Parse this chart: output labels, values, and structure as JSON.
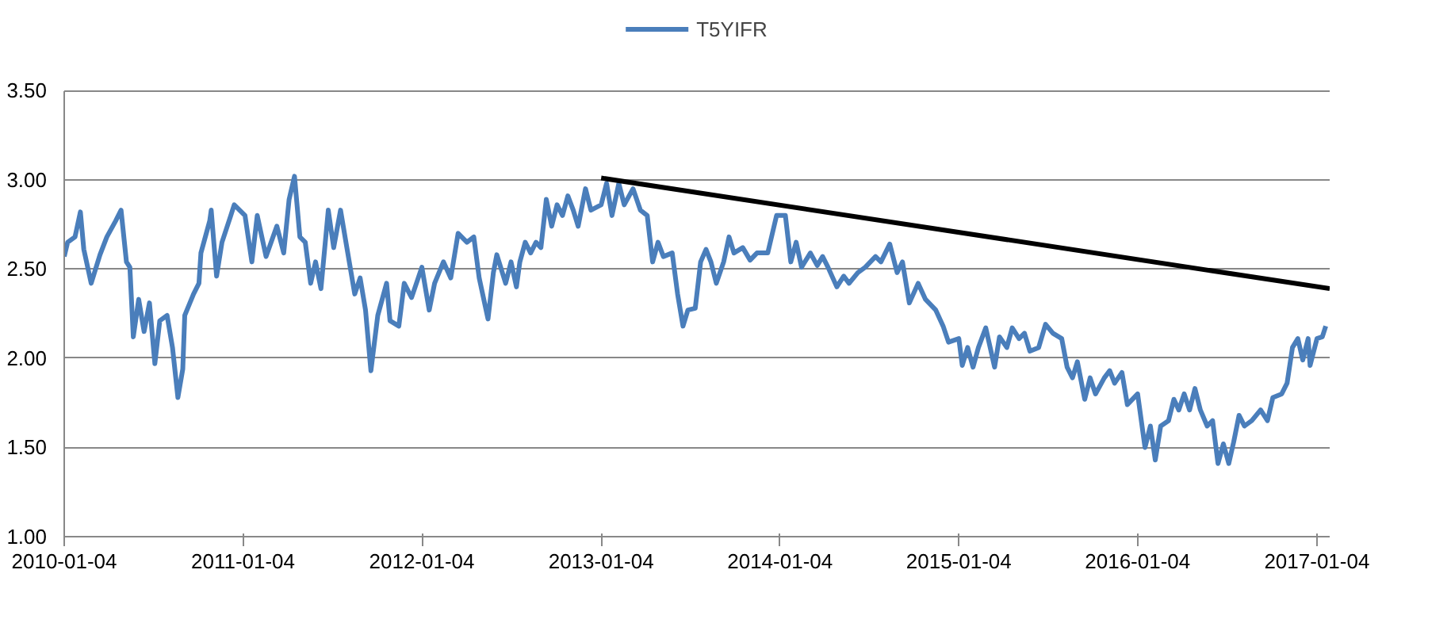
{
  "chart_data": {
    "type": "line",
    "legend": "top",
    "grid": "y",
    "line_style": "solid",
    "marker": "none",
    "xlim": [
      "2010-01-04",
      "2017-01-30"
    ],
    "xticks": [
      "2010-01-04",
      "2011-01-04",
      "2012-01-04",
      "2013-01-04",
      "2014-01-04",
      "2015-01-04",
      "2016-01-04",
      "2017-01-04"
    ],
    "ylim": [
      1.0,
      3.5
    ],
    "yticks": [
      {
        "value": 1.0,
        "label": "1.00"
      },
      {
        "value": 1.5,
        "label": "1.50"
      },
      {
        "value": 2.0,
        "label": "2.00"
      },
      {
        "value": 2.5,
        "label": "2.50"
      },
      {
        "value": 3.0,
        "label": "3.00"
      },
      {
        "value": 3.5,
        "label": "3.50"
      }
    ],
    "series": [
      {
        "name": "T5YIFR",
        "color": "#4a7ebb",
        "x": [
          "2010-01-04",
          "2010-01-11",
          "2010-01-26",
          "2010-02-06",
          "2010-02-13",
          "2010-02-28",
          "2010-03-18",
          "2010-04-01",
          "2010-04-19",
          "2010-04-30",
          "2010-05-11",
          "2010-05-18",
          "2010-05-25",
          "2010-06-05",
          "2010-06-16",
          "2010-06-27",
          "2010-07-08",
          "2010-07-18",
          "2010-08-02",
          "2010-08-13",
          "2010-08-24",
          "2010-09-03",
          "2010-09-07",
          "2010-09-25",
          "2010-10-06",
          "2010-10-10",
          "2010-10-28",
          "2010-10-31",
          "2010-11-11",
          "2010-11-22",
          "2010-12-10",
          "2010-12-17",
          "2011-01-08",
          "2011-01-22",
          "2011-02-02",
          "2011-02-20",
          "2011-03-14",
          "2011-03-28",
          "2011-04-08",
          "2011-04-19",
          "2011-04-30",
          "2011-05-11",
          "2011-05-22",
          "2011-06-01",
          "2011-06-12",
          "2011-06-27",
          "2011-07-08",
          "2011-07-22",
          "2011-08-02",
          "2011-08-20",
          "2011-08-31",
          "2011-09-11",
          "2011-09-22",
          "2011-10-06",
          "2011-10-24",
          "2011-10-31",
          "2011-11-18",
          "2011-11-29",
          "2011-12-14",
          "2012-01-04",
          "2012-01-19",
          "2012-01-30",
          "2012-02-17",
          "2012-03-03",
          "2012-03-18",
          "2012-04-05",
          "2012-04-19",
          "2012-04-30",
          "2012-05-18",
          "2012-05-29",
          "2012-06-05",
          "2012-06-23",
          "2012-07-04",
          "2012-07-15",
          "2012-07-22",
          "2012-08-02",
          "2012-08-13",
          "2012-08-24",
          "2012-09-03",
          "2012-09-14",
          "2012-09-25",
          "2012-10-06",
          "2012-10-17",
          "2012-10-28",
          "2012-11-08",
          "2012-11-18",
          "2012-12-03",
          "2012-12-14",
          "2013-01-04",
          "2013-01-15",
          "2013-01-26",
          "2013-02-09",
          "2013-02-20",
          "2013-03-10",
          "2013-03-25",
          "2013-04-08",
          "2013-04-19",
          "2013-04-30",
          "2013-05-11",
          "2013-05-29",
          "2013-06-09",
          "2013-06-20",
          "2013-06-30",
          "2013-07-15",
          "2013-07-26",
          "2013-08-06",
          "2013-08-16",
          "2013-08-27",
          "2013-09-11",
          "2013-09-22",
          "2013-10-02",
          "2013-10-20",
          "2013-11-04",
          "2013-11-18",
          "2013-12-10",
          "2013-12-28",
          "2014-01-15",
          "2014-01-26",
          "2014-02-06",
          "2014-02-17",
          "2014-03-07",
          "2014-03-21",
          "2014-04-01",
          "2014-04-12",
          "2014-04-30",
          "2014-05-14",
          "2014-05-25",
          "2014-06-12",
          "2014-06-27",
          "2014-07-18",
          "2014-07-29",
          "2014-08-16",
          "2014-08-31",
          "2014-09-11",
          "2014-09-25",
          "2014-10-13",
          "2014-10-28",
          "2014-11-18",
          "2014-12-03",
          "2014-12-14",
          "2015-01-04",
          "2015-01-11",
          "2015-01-22",
          "2015-02-02",
          "2015-02-13",
          "2015-02-28",
          "2015-03-18",
          "2015-03-28",
          "2015-04-12",
          "2015-04-23",
          "2015-05-07",
          "2015-05-18",
          "2015-05-29",
          "2015-06-16",
          "2015-06-30",
          "2015-07-15",
          "2015-08-02",
          "2015-08-13",
          "2015-08-24",
          "2015-09-03",
          "2015-09-18",
          "2015-09-29",
          "2015-10-10",
          "2015-10-28",
          "2015-11-08",
          "2015-11-18",
          "2015-12-03",
          "2015-12-14",
          "2016-01-04",
          "2016-01-19",
          "2016-01-30",
          "2016-02-09",
          "2016-02-20",
          "2016-03-07",
          "2016-03-18",
          "2016-03-28",
          "2016-04-08",
          "2016-04-19",
          "2016-04-30",
          "2016-05-11",
          "2016-05-25",
          "2016-06-05",
          "2016-06-16",
          "2016-06-27",
          "2016-07-08",
          "2016-07-18",
          "2016-07-29",
          "2016-08-09",
          "2016-08-24",
          "2016-09-11",
          "2016-09-25",
          "2016-10-06",
          "2016-10-24",
          "2016-11-04",
          "2016-11-15",
          "2016-11-26",
          "2016-12-06",
          "2016-12-17",
          "2016-12-21",
          "2017-01-04",
          "2017-01-15",
          "2017-01-22"
        ],
        "values": [
          2.57,
          2.65,
          2.68,
          2.82,
          2.61,
          2.42,
          2.58,
          2.68,
          2.77,
          2.83,
          2.54,
          2.51,
          2.12,
          2.33,
          2.15,
          2.31,
          1.97,
          2.21,
          2.24,
          2.06,
          1.78,
          1.94,
          2.24,
          2.36,
          2.42,
          2.59,
          2.77,
          2.83,
          2.46,
          2.65,
          2.8,
          2.86,
          2.8,
          2.54,
          2.8,
          2.57,
          2.74,
          2.59,
          2.89,
          3.02,
          2.68,
          2.65,
          2.42,
          2.54,
          2.39,
          2.83,
          2.62,
          2.83,
          2.65,
          2.36,
          2.45,
          2.27,
          1.93,
          2.24,
          2.42,
          2.21,
          2.18,
          2.42,
          2.34,
          2.51,
          2.27,
          2.42,
          2.54,
          2.45,
          2.7,
          2.65,
          2.68,
          2.45,
          2.22,
          2.48,
          2.58,
          2.42,
          2.54,
          2.4,
          2.54,
          2.65,
          2.59,
          2.65,
          2.62,
          2.89,
          2.74,
          2.86,
          2.8,
          2.91,
          2.83,
          2.74,
          2.95,
          2.83,
          2.86,
          2.98,
          2.8,
          2.98,
          2.86,
          2.95,
          2.83,
          2.8,
          2.54,
          2.65,
          2.57,
          2.59,
          2.36,
          2.18,
          2.27,
          2.28,
          2.54,
          2.61,
          2.54,
          2.42,
          2.54,
          2.68,
          2.59,
          2.62,
          2.55,
          2.59,
          2.59,
          2.8,
          2.8,
          2.54,
          2.65,
          2.51,
          2.59,
          2.52,
          2.57,
          2.51,
          2.4,
          2.46,
          2.42,
          2.48,
          2.51,
          2.57,
          2.54,
          2.64,
          2.48,
          2.54,
          2.31,
          2.42,
          2.33,
          2.27,
          2.18,
          2.09,
          2.11,
          1.96,
          2.06,
          1.95,
          2.06,
          2.17,
          1.95,
          2.12,
          2.06,
          2.17,
          2.11,
          2.14,
          2.04,
          2.06,
          2.19,
          2.14,
          2.11,
          1.95,
          1.89,
          1.98,
          1.77,
          1.89,
          1.8,
          1.89,
          1.93,
          1.86,
          1.92,
          1.74,
          1.8,
          1.5,
          1.62,
          1.43,
          1.62,
          1.65,
          1.77,
          1.71,
          1.8,
          1.71,
          1.83,
          1.71,
          1.62,
          1.65,
          1.41,
          1.52,
          1.41,
          1.53,
          1.68,
          1.62,
          1.65,
          1.71,
          1.65,
          1.78,
          1.8,
          1.86,
          2.06,
          2.11,
          1.99,
          2.11,
          1.96,
          2.11,
          2.12,
          2.18
        ]
      },
      {
        "type": "line",
        "color": "#000000",
        "x": [
          "2013-01-04",
          "2017-01-30"
        ],
        "values": [
          3.01,
          2.39
        ]
      }
    ]
  }
}
